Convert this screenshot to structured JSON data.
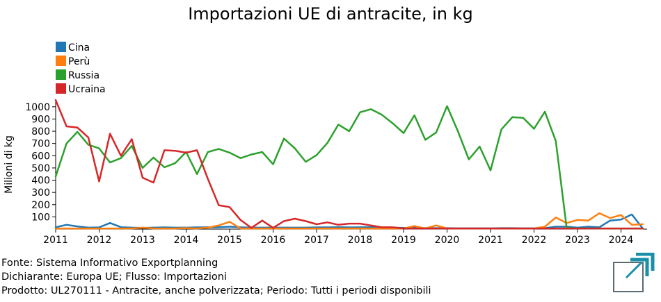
{
  "chart_data": {
    "type": "line",
    "title": "Importazioni UE di antracite, in kg",
    "ylabel": "Milioni di kg",
    "xlabel": "",
    "xlim": [
      2011,
      2024.6
    ],
    "ylim": [
      0,
      1050
    ],
    "x_ticks": [
      "2011",
      "2012",
      "2013",
      "2014",
      "2015",
      "2016",
      "2017",
      "2018",
      "2019",
      "2020",
      "2021",
      "2022",
      "2023",
      "2024"
    ],
    "y_ticks": [
      "100",
      "200",
      "300",
      "400",
      "500",
      "600",
      "700",
      "800",
      "900",
      "1000"
    ],
    "legend_position": "top-left",
    "grid": false,
    "series": [
      {
        "name": "Cina",
        "color": "#1f77b4",
        "x": [
          2011.0,
          2011.25,
          2011.5,
          2011.75,
          2012.0,
          2012.25,
          2012.5,
          2012.75,
          2013.0,
          2013.25,
          2013.5,
          2013.75,
          2014.0,
          2014.25,
          2014.5,
          2014.75,
          2015.0,
          2015.25,
          2015.5,
          2015.75,
          2016.0,
          2016.25,
          2016.5,
          2016.75,
          2017.0,
          2017.25,
          2017.5,
          2017.75,
          2018.0,
          2018.25,
          2018.5,
          2018.75,
          2019.0,
          2019.25,
          2019.5,
          2019.75,
          2020.0,
          2020.25,
          2020.5,
          2020.75,
          2021.0,
          2021.25,
          2021.5,
          2021.75,
          2022.0,
          2022.25,
          2022.5,
          2022.75,
          2023.0,
          2023.25,
          2023.5,
          2023.75,
          2024.0,
          2024.25,
          2024.5
        ],
        "values": [
          15,
          35,
          22,
          12,
          14,
          50,
          16,
          12,
          10,
          12,
          14,
          12,
          12,
          14,
          15,
          16,
          20,
          15,
          12,
          12,
          12,
          12,
          12,
          12,
          14,
          14,
          16,
          14,
          15,
          16,
          12,
          12,
          10,
          10,
          8,
          8,
          8,
          6,
          6,
          6,
          6,
          8,
          8,
          6,
          6,
          8,
          20,
          20,
          12,
          20,
          15,
          70,
          78,
          120,
          5
        ]
      },
      {
        "name": "Perù",
        "color": "#ff7f0e",
        "x": [
          2011.0,
          2011.25,
          2011.5,
          2011.75,
          2012.0,
          2012.25,
          2012.5,
          2012.75,
          2013.0,
          2013.25,
          2013.5,
          2013.75,
          2014.0,
          2014.25,
          2014.5,
          2014.75,
          2015.0,
          2015.25,
          2015.5,
          2015.75,
          2016.0,
          2016.25,
          2016.5,
          2016.75,
          2017.0,
          2017.25,
          2017.5,
          2017.75,
          2018.0,
          2018.25,
          2018.5,
          2018.75,
          2019.0,
          2019.25,
          2019.5,
          2019.75,
          2020.0,
          2020.25,
          2020.5,
          2020.75,
          2021.0,
          2021.25,
          2021.5,
          2021.75,
          2022.0,
          2022.25,
          2022.5,
          2022.75,
          2023.0,
          2023.25,
          2023.5,
          2023.75,
          2024.0,
          2024.25,
          2024.5
        ],
        "values": [
          5,
          5,
          5,
          5,
          5,
          5,
          5,
          5,
          12,
          5,
          5,
          5,
          8,
          5,
          12,
          30,
          60,
          5,
          5,
          5,
          5,
          5,
          5,
          5,
          5,
          5,
          5,
          5,
          5,
          5,
          5,
          5,
          5,
          25,
          5,
          30,
          5,
          5,
          5,
          5,
          5,
          5,
          5,
          5,
          5,
          20,
          95,
          50,
          75,
          70,
          130,
          90,
          115,
          35,
          40
        ]
      },
      {
        "name": "Russia",
        "color": "#2ca02c",
        "x": [
          2011.0,
          2011.25,
          2011.5,
          2011.75,
          2012.0,
          2012.25,
          2012.5,
          2012.75,
          2013.0,
          2013.25,
          2013.5,
          2013.75,
          2014.0,
          2014.25,
          2014.5,
          2014.75,
          2015.0,
          2015.25,
          2015.5,
          2015.75,
          2016.0,
          2016.25,
          2016.5,
          2016.75,
          2017.0,
          2017.25,
          2017.5,
          2017.75,
          2018.0,
          2018.25,
          2018.5,
          2018.75,
          2019.0,
          2019.25,
          2019.5,
          2019.75,
          2020.0,
          2020.25,
          2020.5,
          2020.75,
          2021.0,
          2021.25,
          2021.5,
          2021.75,
          2022.0,
          2022.25,
          2022.5,
          2022.75,
          2023.0,
          2023.25,
          2023.5,
          2023.75,
          2024.0,
          2024.25,
          2024.5
        ],
        "values": [
          430,
          700,
          795,
          690,
          660,
          545,
          580,
          680,
          500,
          585,
          505,
          540,
          630,
          450,
          630,
          655,
          625,
          580,
          610,
          630,
          530,
          740,
          660,
          550,
          605,
          705,
          855,
          800,
          955,
          980,
          935,
          865,
          785,
          930,
          730,
          790,
          1005,
          800,
          570,
          675,
          480,
          815,
          915,
          910,
          820,
          960,
          720,
          10,
          5,
          5,
          5,
          5,
          5,
          5,
          5
        ]
      },
      {
        "name": "Ucraina",
        "color": "#d62728",
        "x": [
          2011.0,
          2011.25,
          2011.5,
          2011.75,
          2012.0,
          2012.25,
          2012.5,
          2012.75,
          2013.0,
          2013.25,
          2013.5,
          2013.75,
          2014.0,
          2014.25,
          2014.5,
          2014.75,
          2015.0,
          2015.25,
          2015.5,
          2015.75,
          2016.0,
          2016.25,
          2016.5,
          2016.75,
          2017.0,
          2017.25,
          2017.5,
          2017.75,
          2018.0,
          2018.25,
          2018.5,
          2018.75,
          2019.0,
          2019.25,
          2019.5,
          2019.75,
          2020.0,
          2020.25,
          2020.5,
          2020.75,
          2021.0,
          2021.25,
          2021.5,
          2021.75,
          2022.0,
          2022.25,
          2022.5,
          2022.75,
          2023.0,
          2023.25,
          2023.5,
          2023.75,
          2024.0,
          2024.25,
          2024.5
        ],
        "values": [
          1055,
          840,
          830,
          750,
          390,
          780,
          600,
          735,
          420,
          380,
          645,
          640,
          625,
          645,
          410,
          195,
          180,
          75,
          10,
          70,
          10,
          65,
          85,
          65,
          40,
          55,
          35,
          45,
          45,
          30,
          15,
          15,
          5,
          5,
          5,
          5,
          5,
          5,
          5,
          5,
          5,
          5,
          5,
          5,
          5,
          5,
          5,
          5,
          5,
          5,
          5,
          5,
          5,
          5,
          5
        ]
      }
    ]
  },
  "footer": {
    "source": "Fonte: Sistema Informativo Exportplanning",
    "declarant": "Dichiarante: Europa UE; Flusso: Importazioni",
    "product": "Prodotto: UL270111 - Antracite, anche polverizzata; Periodo: Tutti i periodi disponibili"
  },
  "logo": {
    "color": "#1a8fa8",
    "icon": "exportplanning-logo-icon"
  }
}
